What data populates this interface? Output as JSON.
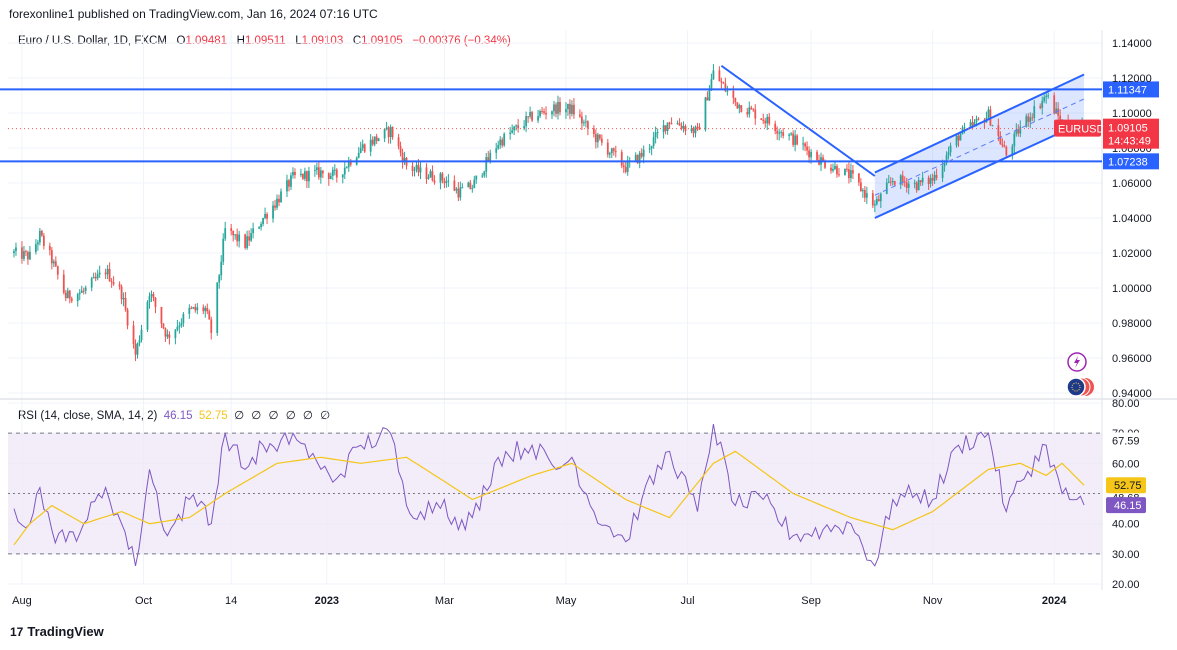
{
  "header": {
    "publisher": "forexonline1 published on TradingView.com, Jan 16, 2024 07:16 UTC"
  },
  "symbol": {
    "name": "Euro / U.S. Dollar, 1D, FXCM",
    "open_label": "O",
    "open": "1.09481",
    "high_label": "H",
    "high": "1.09511",
    "low_label": "L",
    "low": "1.09103",
    "close_label": "C",
    "close": "1.09105",
    "change": "−0.00376 (−0.34%)"
  },
  "rsi_header": {
    "label": "RSI (14, close, SMA, 14, 2)",
    "rsi": "46.15",
    "sma": "52.75",
    "nulls": "∅ ∅ ∅ ∅ ∅ ∅"
  },
  "footer": {
    "brand": "TradingView",
    "logo": "17"
  },
  "colors": {
    "up": "#26a69a",
    "down": "#ef5350",
    "line": "#2962ff",
    "rsi": "#7e57c2",
    "sma": "#f5c518",
    "rsi_band": "#ede7f6",
    "label_red": "#f23645"
  },
  "chart_data": [
    {
      "type": "candlestick",
      "title": "Euro / U.S. Dollar, 1D, FXCM",
      "symbol_tag": "EURUSD",
      "last_price": "1.09105",
      "countdown": "14:43:49",
      "ylim": [
        0.94,
        1.14
      ],
      "yticks": [
        "1.14000",
        "1.12000",
        "1.10000",
        "1.08000",
        "1.06000",
        "1.04000",
        "1.02000",
        "1.00000",
        "0.98000",
        "0.96000",
        "0.94000"
      ],
      "xticks": [
        "Aug",
        "Oct",
        "14",
        "2023",
        "Mar",
        "May",
        "Jul",
        "Sep",
        "Nov",
        "2024"
      ],
      "horizontal_levels": [
        {
          "value": 1.11347,
          "label": "1.11347"
        },
        {
          "value": 1.07238,
          "label": "1.07238"
        }
      ],
      "trendlines": [
        {
          "name": "descending",
          "from": [
            "2023-07-18",
            1.127
          ],
          "to": [
            "2023-10-03",
            1.064
          ]
        },
        {
          "name": "channel-upper",
          "from": [
            "2023-10-03",
            1.066
          ],
          "to": [
            "2024-01-16",
            1.122
          ]
        },
        {
          "name": "channel-lower",
          "from": [
            "2023-10-03",
            1.04
          ],
          "to": [
            "2024-01-16",
            1.095
          ]
        },
        {
          "name": "channel-mid",
          "from": [
            "2023-10-03",
            1.053
          ],
          "to": [
            "2024-01-16",
            1.108
          ]
        }
      ],
      "close_path": [
        [
          "2022-07-28",
          1.02
        ],
        [
          "2022-08-05",
          1.018
        ],
        [
          "2022-08-10",
          1.03
        ],
        [
          "2022-08-16",
          1.016
        ],
        [
          "2022-08-23",
          0.995
        ],
        [
          "2022-09-01",
          0.998
        ],
        [
          "2022-09-12",
          1.01
        ],
        [
          "2022-09-20",
          0.997
        ],
        [
          "2022-09-27",
          0.962
        ],
        [
          "2022-10-04",
          0.998
        ],
        [
          "2022-10-13",
          0.972
        ],
        [
          "2022-10-24",
          0.987
        ],
        [
          "2022-11-01",
          0.988
        ],
        [
          "2022-11-04",
          0.975
        ],
        [
          "2022-11-11",
          1.033
        ],
        [
          "2022-11-21",
          1.025
        ],
        [
          "2022-11-30",
          1.04
        ],
        [
          "2022-12-07",
          1.05
        ],
        [
          "2022-12-15",
          1.063
        ],
        [
          "2022-12-29",
          1.066
        ],
        [
          "2023-01-06",
          1.064
        ],
        [
          "2023-01-18",
          1.08
        ],
        [
          "2023-02-02",
          1.09
        ],
        [
          "2023-02-10",
          1.07
        ],
        [
          "2023-02-17",
          1.066
        ],
        [
          "2023-03-01",
          1.062
        ],
        [
          "2023-03-08",
          1.055
        ],
        [
          "2023-03-15",
          1.058
        ],
        [
          "2023-03-28",
          1.083
        ],
        [
          "2023-04-14",
          1.098
        ],
        [
          "2023-04-26",
          1.103
        ],
        [
          "2023-05-04",
          1.102
        ],
        [
          "2023-05-15",
          1.087
        ],
        [
          "2023-05-31",
          1.069
        ],
        [
          "2023-06-08",
          1.076
        ],
        [
          "2023-06-22",
          1.096
        ],
        [
          "2023-07-06",
          1.089
        ],
        [
          "2023-07-14",
          1.123
        ],
        [
          "2023-07-25",
          1.106
        ],
        [
          "2023-08-08",
          1.097
        ],
        [
          "2023-08-23",
          1.085
        ],
        [
          "2023-09-07",
          1.072
        ],
        [
          "2023-09-21",
          1.064
        ],
        [
          "2023-10-03",
          1.047
        ],
        [
          "2023-10-12",
          1.062
        ],
        [
          "2023-10-24",
          1.059
        ],
        [
          "2023-11-01",
          1.062
        ],
        [
          "2023-11-14",
          1.087
        ],
        [
          "2023-11-29",
          1.099
        ],
        [
          "2023-12-08",
          1.076
        ],
        [
          "2023-12-15",
          1.092
        ],
        [
          "2023-12-28",
          1.11
        ],
        [
          "2024-01-05",
          1.094
        ],
        [
          "2024-01-16",
          1.091
        ]
      ]
    },
    {
      "type": "line",
      "title": "RSI (14, close, SMA, 14, 2)",
      "ylim": [
        20,
        80
      ],
      "yticks": [
        "80.00",
        "70.00",
        "60.00",
        "50.00",
        "40.00",
        "30.00",
        "20.00"
      ],
      "band": [
        30,
        70
      ],
      "midline": 50,
      "levels": [
        {
          "label": "67.59",
          "value": 67.59
        },
        {
          "label": "48.68",
          "value": 48.68
        }
      ],
      "series": [
        {
          "name": "RSI",
          "last": "46.15",
          "values": [
            [
              "2022-07-28",
              45
            ],
            [
              "2022-08-05",
              40
            ],
            [
              "2022-08-10",
              52
            ],
            [
              "2022-08-16",
              38
            ],
            [
              "2022-08-23",
              34
            ],
            [
              "2022-09-01",
              40
            ],
            [
              "2022-09-12",
              52
            ],
            [
              "2022-09-20",
              40
            ],
            [
              "2022-09-27",
              26
            ],
            [
              "2022-10-04",
              58
            ],
            [
              "2022-10-13",
              36
            ],
            [
              "2022-10-24",
              48
            ],
            [
              "2022-11-01",
              46
            ],
            [
              "2022-11-04",
              40
            ],
            [
              "2022-11-11",
              70
            ],
            [
              "2022-11-21",
              58
            ],
            [
              "2022-11-30",
              66
            ],
            [
              "2022-12-07",
              64
            ],
            [
              "2022-12-15",
              70
            ],
            [
              "2022-12-29",
              58
            ],
            [
              "2023-01-06",
              55
            ],
            [
              "2023-01-18",
              66
            ],
            [
              "2023-02-02",
              70
            ],
            [
              "2023-02-10",
              46
            ],
            [
              "2023-02-17",
              44
            ],
            [
              "2023-03-01",
              48
            ],
            [
              "2023-03-08",
              38
            ],
            [
              "2023-03-15",
              42
            ],
            [
              "2023-03-28",
              62
            ],
            [
              "2023-04-14",
              66
            ],
            [
              "2023-04-26",
              58
            ],
            [
              "2023-05-04",
              62
            ],
            [
              "2023-05-15",
              44
            ],
            [
              "2023-05-31",
              34
            ],
            [
              "2023-06-08",
              48
            ],
            [
              "2023-06-22",
              64
            ],
            [
              "2023-07-06",
              44
            ],
            [
              "2023-07-14",
              73
            ],
            [
              "2023-07-25",
              46
            ],
            [
              "2023-08-08",
              48
            ],
            [
              "2023-08-23",
              36
            ],
            [
              "2023-09-07",
              38
            ],
            [
              "2023-09-21",
              40
            ],
            [
              "2023-10-03",
              26
            ],
            [
              "2023-10-12",
              48
            ],
            [
              "2023-10-24",
              50
            ],
            [
              "2023-11-01",
              48
            ],
            [
              "2023-11-14",
              66
            ],
            [
              "2023-11-29",
              70
            ],
            [
              "2023-12-08",
              44
            ],
            [
              "2023-12-15",
              54
            ],
            [
              "2023-12-28",
              66
            ],
            [
              "2024-01-05",
              50
            ],
            [
              "2024-01-16",
              46.15
            ]
          ]
        },
        {
          "name": "SMA",
          "last": "52.75",
          "values": [
            [
              "2022-07-28",
              33
            ],
            [
              "2022-08-05",
              40
            ],
            [
              "2022-08-16",
              46
            ],
            [
              "2022-09-01",
              40
            ],
            [
              "2022-09-20",
              44
            ],
            [
              "2022-10-04",
              40
            ],
            [
              "2022-10-24",
              42
            ],
            [
              "2022-11-11",
              50
            ],
            [
              "2022-12-07",
              60
            ],
            [
              "2022-12-29",
              62
            ],
            [
              "2023-01-18",
              60
            ],
            [
              "2023-02-10",
              62
            ],
            [
              "2023-03-01",
              54
            ],
            [
              "2023-03-15",
              48
            ],
            [
              "2023-04-14",
              56
            ],
            [
              "2023-05-04",
              60
            ],
            [
              "2023-05-31",
              48
            ],
            [
              "2023-06-22",
              42
            ],
            [
              "2023-07-14",
              60
            ],
            [
              "2023-07-25",
              64
            ],
            [
              "2023-08-23",
              50
            ],
            [
              "2023-09-21",
              42
            ],
            [
              "2023-10-12",
              38
            ],
            [
              "2023-11-01",
              44
            ],
            [
              "2023-11-29",
              58
            ],
            [
              "2023-12-15",
              60
            ],
            [
              "2023-12-28",
              56
            ],
            [
              "2024-01-05",
              60
            ],
            [
              "2024-01-16",
              52.75
            ]
          ]
        }
      ]
    }
  ]
}
